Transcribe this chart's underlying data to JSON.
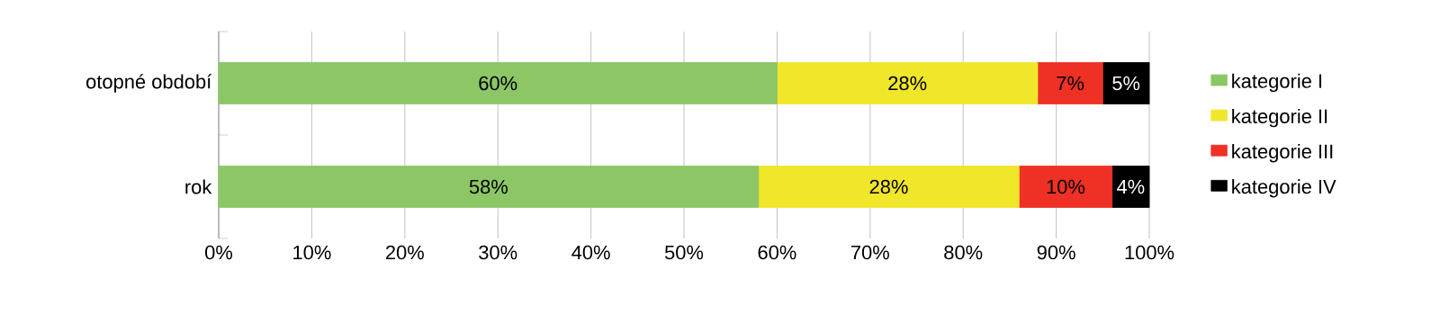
{
  "chart_data": {
    "type": "bar",
    "orientation": "horizontal",
    "stacked": true,
    "categories": [
      "otopné období",
      "rok"
    ],
    "series": [
      {
        "name": "kategorie I",
        "color": "#8cc665",
        "values": [
          60,
          58
        ],
        "value_labels": [
          "60%",
          "58%"
        ]
      },
      {
        "name": "kategorie II",
        "color": "#f0e62a",
        "values": [
          28,
          28
        ],
        "value_labels": [
          "28%",
          "28%"
        ]
      },
      {
        "name": "kategorie III",
        "color": "#ee3124",
        "values": [
          7,
          10
        ],
        "value_labels": [
          "7%",
          "10%"
        ]
      },
      {
        "name": "kategorie IV",
        "color": "#000000",
        "values": [
          5,
          4
        ],
        "value_labels": [
          "5%",
          "4%"
        ]
      }
    ],
    "xlim": [
      0,
      100
    ],
    "xticks": [
      {
        "value": 0,
        "label": "0%"
      },
      {
        "value": 10,
        "label": "10%"
      },
      {
        "value": 20,
        "label": "20%"
      },
      {
        "value": 30,
        "label": "30%"
      },
      {
        "value": 40,
        "label": "40%"
      },
      {
        "value": 50,
        "label": "50%"
      },
      {
        "value": 60,
        "label": "60%"
      },
      {
        "value": 70,
        "label": "70%"
      },
      {
        "value": 80,
        "label": "80%"
      },
      {
        "value": 90,
        "label": "90%"
      },
      {
        "value": 100,
        "label": "100%"
      }
    ],
    "grid": "x",
    "legend": "right"
  }
}
